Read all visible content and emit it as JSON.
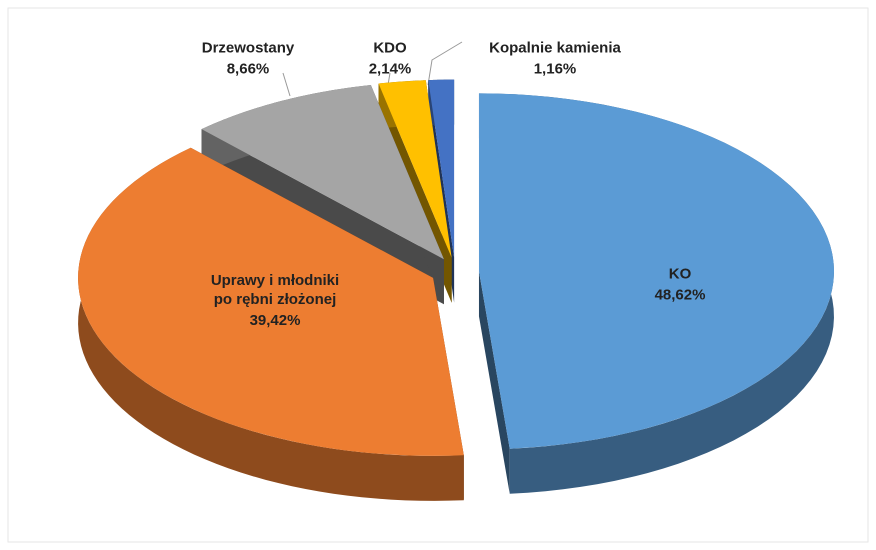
{
  "chart_data": {
    "type": "pie",
    "categories": [
      "KO",
      "Uprawy i młodniki\npo rębni złożonej",
      "Drzewostany",
      "KDO",
      "Kopalnie kamienia"
    ],
    "values": [
      48.62,
      39.42,
      8.66,
      2.14,
      1.16
    ],
    "value_labels": [
      "48,62%",
      "39,42%",
      "8,66%",
      "2,14%",
      "1,16%"
    ],
    "colors": [
      "#5b9bd5",
      "#ed7d31",
      "#a5a5a5",
      "#ffc000",
      "#4472c4"
    ]
  }
}
